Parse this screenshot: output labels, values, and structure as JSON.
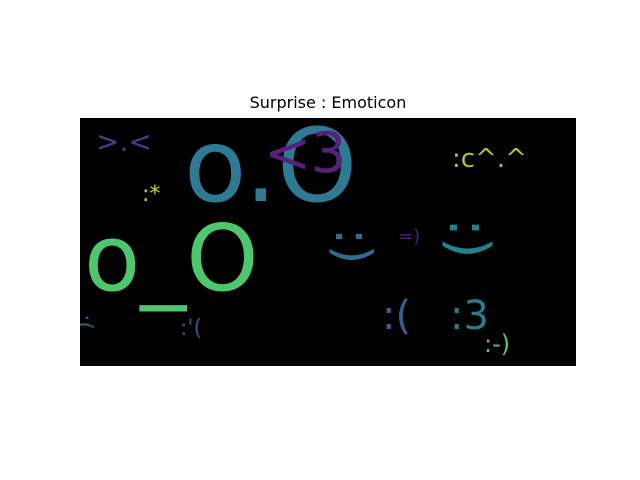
{
  "title": "Surprise : Emoticon",
  "words": [
    {
      "text": "o.O",
      "color": "#2e7a93"
    },
    {
      "text": "o_O",
      "color": "#4fc56d"
    },
    {
      "text": "<3",
      "color": "#56207c"
    },
    {
      "text": ":)",
      "color": "#26818e"
    },
    {
      "text": ":-)",
      "color": "#5ac662"
    },
    {
      "text": ":c^.^",
      "color": "#a5c92b"
    },
    {
      "text": ">.<",
      "color": "#473d8a"
    },
    {
      "text": ":*",
      "color": "#c1d52a"
    },
    {
      "text": ":(",
      "color": "#34608d"
    },
    {
      "text": ":3",
      "color": "#2a7b8e"
    },
    {
      "text": "=)",
      "color": "#4b2072"
    },
    {
      "text": ":'(",
      "color": "#3b528b"
    },
    {
      "text": ":(",
      "color": "#34608d"
    },
    {
      "text": ":)",
      "color": "#2f6c8e"
    }
  ]
}
